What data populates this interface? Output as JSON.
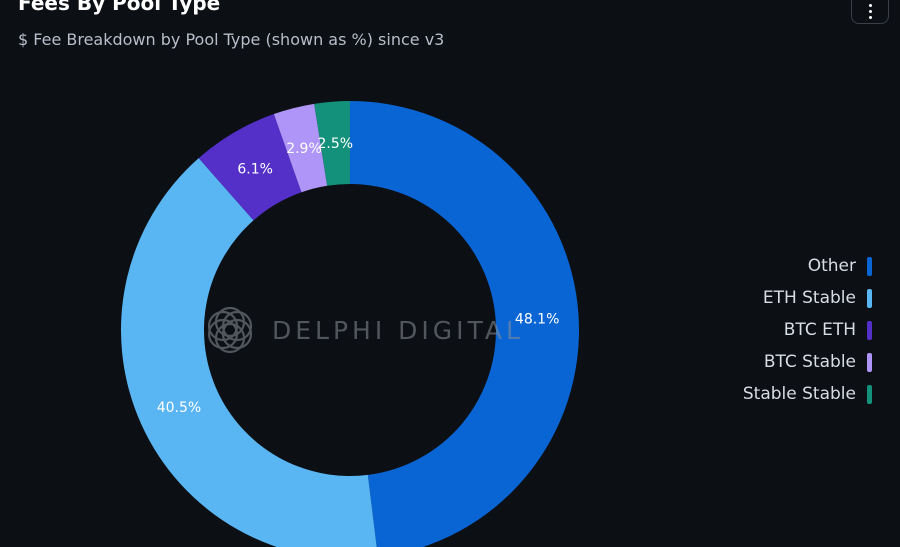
{
  "header": {
    "title": "Fees By Pool Type",
    "subtitle": "$ Fee Breakdown by Pool Type (shown as %) since v3",
    "menu_icon": "vertical-ellipsis-icon"
  },
  "watermark": {
    "text": "DELPHI DIGITAL",
    "icon": "delphi-logo-icon"
  },
  "chart_data": {
    "type": "pie",
    "donut": true,
    "title": "Fees By Pool Type",
    "subtitle": "$ Fee Breakdown by Pool Type (shown as %) since v3",
    "unit": "%",
    "legend_position": "right",
    "slices": [
      {
        "name": "Other",
        "value": 48.1,
        "label": "48.1%",
        "color": "#0a65d4"
      },
      {
        "name": "ETH Stable",
        "value": 40.5,
        "label": "40.5%",
        "color": "#5ab6f2"
      },
      {
        "name": "BTC ETH",
        "value": 6.1,
        "label": "6.1%",
        "color": "#5430c9"
      },
      {
        "name": "BTC Stable",
        "value": 2.9,
        "label": "2.9%",
        "color": "#ae95f7"
      },
      {
        "name": "Stable Stable",
        "value": 2.5,
        "label": "2.5%",
        "color": "#13917a"
      }
    ]
  }
}
